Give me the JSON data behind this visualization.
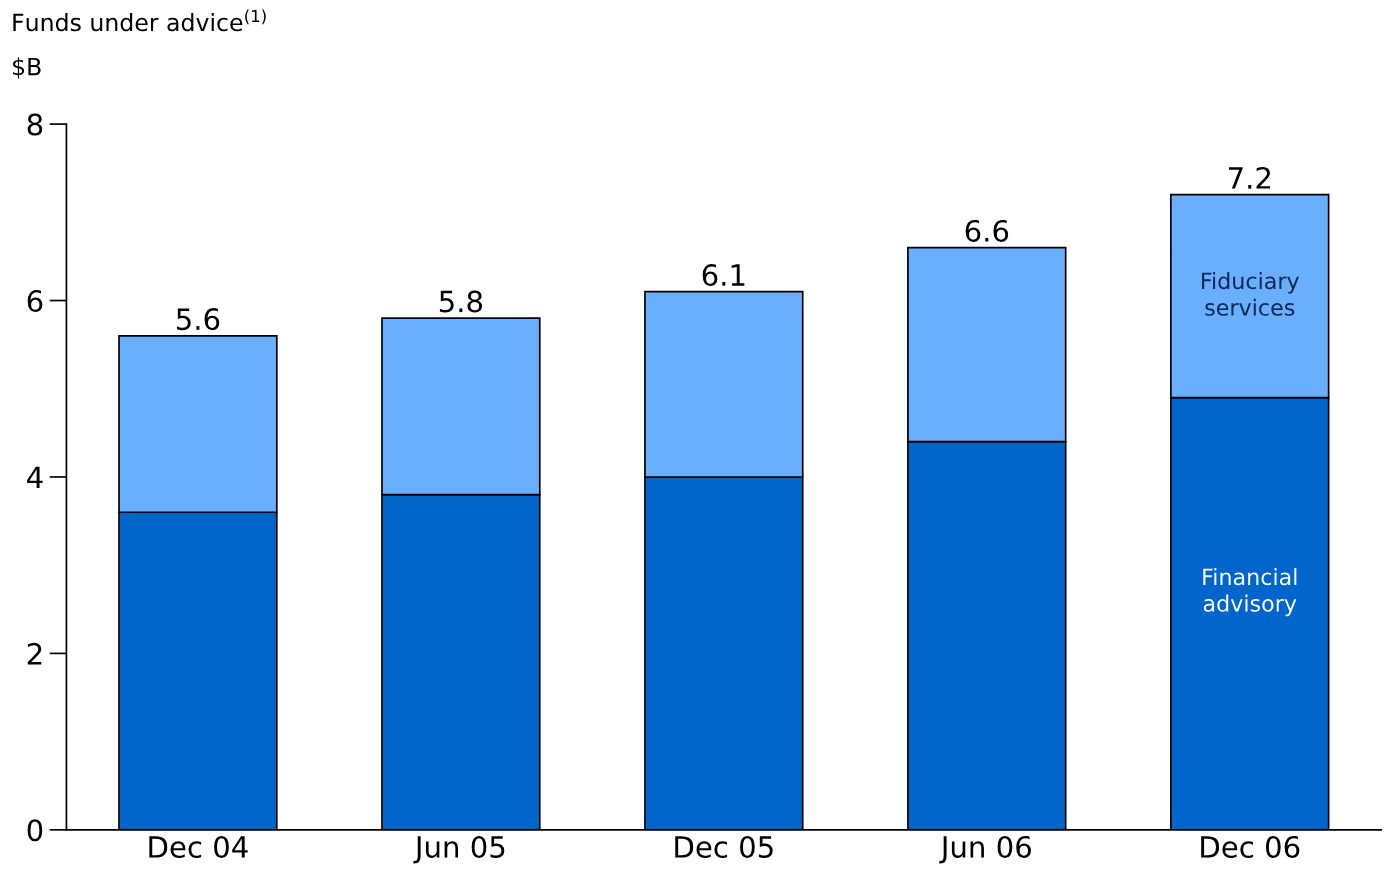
{
  "chart_data": {
    "type": "bar",
    "stacked": true,
    "title": "Funds under advice$^{(1)}$",
    "ylabel": "$B",
    "categories": [
      "Dec 04",
      "Jun 05",
      "Dec 05",
      "Jun 06",
      "Dec 06"
    ],
    "series": [
      {
        "name": "Financial advisory",
        "color": "#0066cc",
        "values": [
          3.6,
          3.8,
          4.0,
          4.4,
          4.9
        ]
      },
      {
        "name": "Fiduciary services",
        "color": "#6aaeff",
        "values": [
          2.0,
          2.0,
          2.1,
          2.2,
          2.3
        ]
      }
    ],
    "totals": [
      "5.6",
      "5.8",
      "6.1",
      "6.6",
      "7.2"
    ],
    "ylim": [
      0,
      8
    ],
    "yticks": [
      0,
      2,
      4,
      6,
      8
    ],
    "grid": false,
    "legend": false
  }
}
